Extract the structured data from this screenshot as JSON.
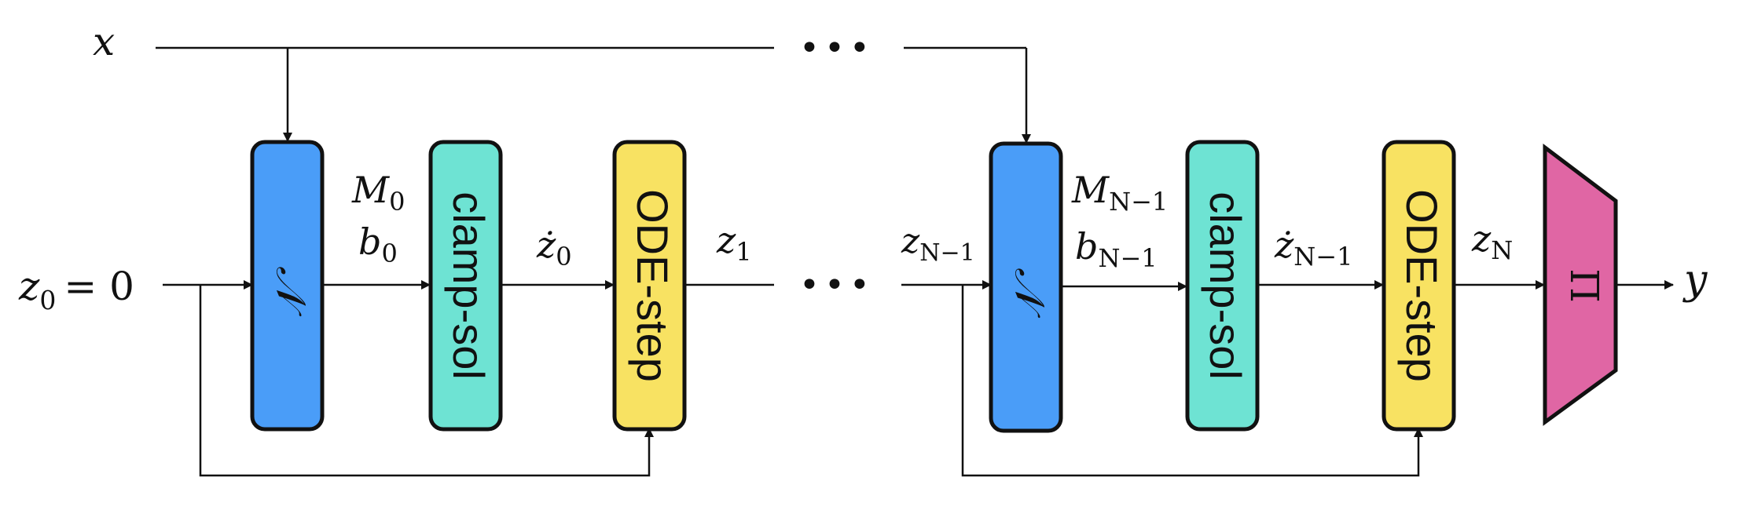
{
  "labels": {
    "input_x": "x",
    "z0_var": "z",
    "z0_sub": "0",
    "z0_eq": "= 0",
    "output_y": "y",
    "ellipsis_top": "•••",
    "ellipsis_mid": "•••"
  },
  "blocks": {
    "n_net": "𝒩",
    "clamp": "clamp-sol",
    "ode": "ODE-step",
    "proj": "Π"
  },
  "stage_first": {
    "M": "M",
    "M_sub": "0",
    "b": "b",
    "b_sub": "0",
    "zdot": "ż",
    "zdot_sub": "0",
    "z_out": "z",
    "z_out_sub": "1"
  },
  "stage_last": {
    "z_in": "z",
    "z_in_sub": "N−1",
    "M": "M",
    "M_sub": "N−1",
    "b": "b",
    "b_sub": "N−1",
    "zdot": "ż",
    "zdot_sub": "N−1",
    "z_out": "z",
    "z_out_sub": "N"
  },
  "colors": {
    "n_net": "#4a9df8",
    "clamp": "#6ee3d3",
    "ode": "#f8e262",
    "proj": "#e066a4",
    "stroke": "#111111"
  }
}
